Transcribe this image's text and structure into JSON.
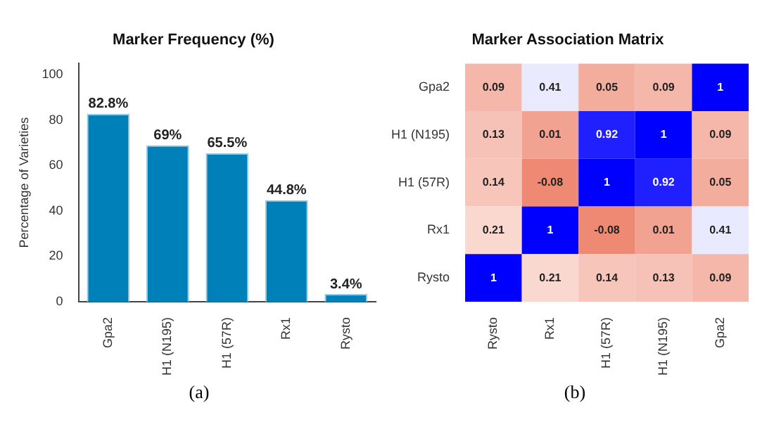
{
  "chart_data": [
    {
      "type": "bar",
      "title": "Marker Frequency (%)",
      "ylabel": "Percentage of Varieties",
      "categories": [
        "Gpa2",
        "H1 (N195)",
        "H1 (57R)",
        "Rx1",
        "Rysto"
      ],
      "values": [
        82.8,
        69,
        65.5,
        44.8,
        3.4
      ],
      "value_labels": [
        "82.8%",
        "69%",
        "65.5%",
        "44.8%",
        "3.4%"
      ],
      "color": "#0080b8",
      "ylim": [
        0,
        105
      ],
      "yticks": [
        0,
        20,
        40,
        60,
        80,
        100
      ],
      "grid": false,
      "legend": false,
      "annotations": [
        "(a)"
      ]
    },
    {
      "type": "heatmap",
      "title": "Marker Association Matrix",
      "categories": [
        "Rysto",
        "Rx1",
        "H1 (57R)",
        "H1 (N195)",
        "Gpa2"
      ],
      "y_categories": [
        "Gpa2",
        "H1 (N195)",
        "H1 (57R)",
        "Rx1",
        "Rysto"
      ],
      "cells": [
        [
          0.09,
          0.41,
          0.05,
          0.09,
          1
        ],
        [
          0.13,
          0.01,
          0.92,
          1,
          0.09
        ],
        [
          0.14,
          -0.08,
          1,
          0.92,
          0.05
        ],
        [
          0.21,
          1,
          -0.08,
          0.01,
          0.41
        ],
        [
          1,
          0.21,
          0.14,
          0.13,
          0.09
        ]
      ],
      "data_labels": true,
      "legend": false,
      "annotations": [
        "(b)"
      ]
    }
  ]
}
